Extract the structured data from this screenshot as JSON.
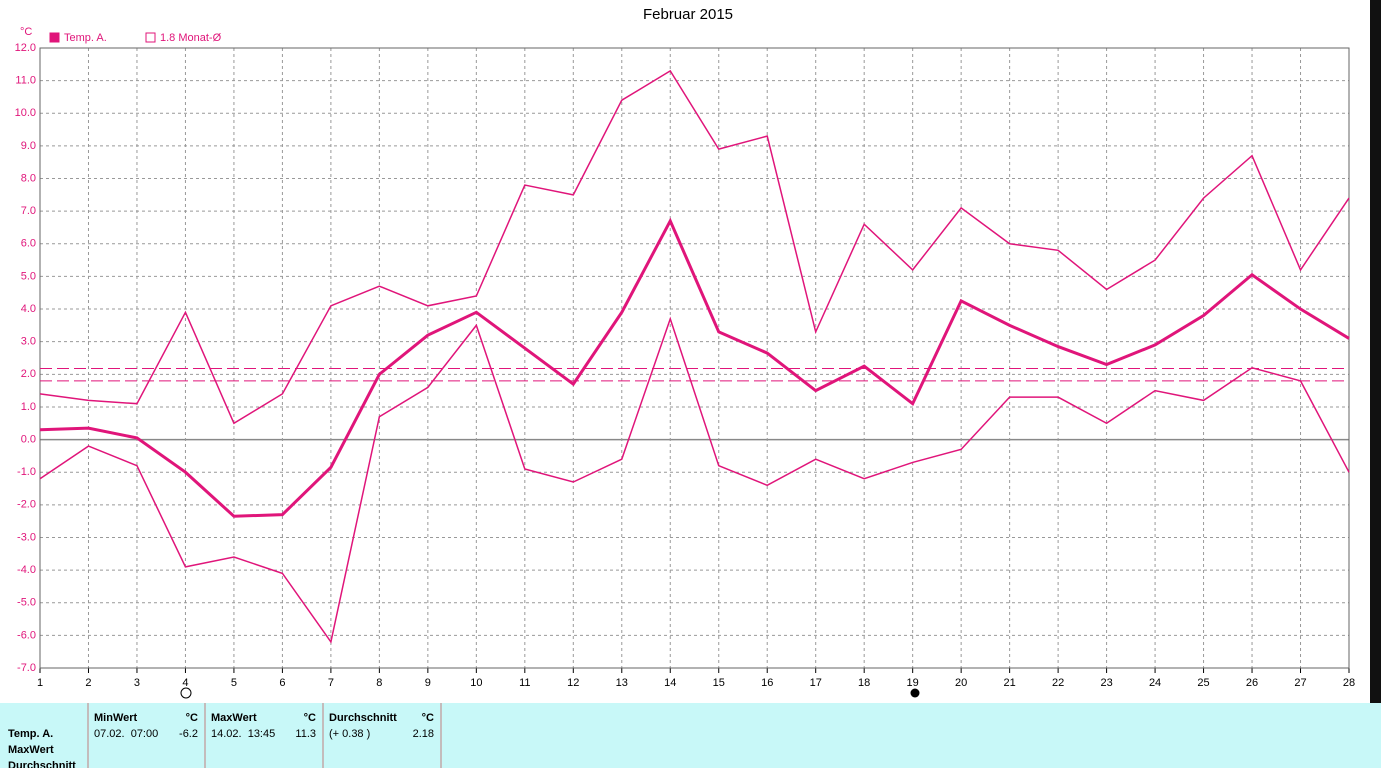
{
  "chart_data": {
    "type": "line",
    "title": "Februar 2015",
    "y_unit": "°C",
    "legend": [
      {
        "label": "Temp. A.",
        "filled": true
      },
      {
        "label": "1.8 Monat-Ø",
        "filled": false
      }
    ],
    "x": [
      1,
      2,
      3,
      4,
      5,
      6,
      7,
      8,
      9,
      10,
      11,
      12,
      13,
      14,
      15,
      16,
      17,
      18,
      19,
      20,
      21,
      22,
      23,
      24,
      25,
      26,
      27,
      28
    ],
    "xlim": [
      1,
      28
    ],
    "xticks": [
      1,
      2,
      3,
      4,
      5,
      6,
      7,
      8,
      9,
      10,
      11,
      12,
      13,
      14,
      15,
      16,
      17,
      18,
      19,
      20,
      21,
      22,
      23,
      24,
      25,
      26,
      27,
      28
    ],
    "ylim": [
      -7,
      12
    ],
    "yticks": [
      {
        "value": -7,
        "label": "-7.0"
      },
      {
        "value": -6,
        "label": "-6.0"
      },
      {
        "value": -5,
        "label": "-5.0"
      },
      {
        "value": -4,
        "label": "-4.0"
      },
      {
        "value": -3,
        "label": "-3.0"
      },
      {
        "value": -2,
        "label": "-2.0"
      },
      {
        "value": -1,
        "label": "-1.0"
      },
      {
        "value": 0,
        "label": "0.0"
      },
      {
        "value": 1,
        "label": "1.0"
      },
      {
        "value": 2,
        "label": "2.0"
      },
      {
        "value": 3,
        "label": "3.0"
      },
      {
        "value": 4,
        "label": "4.0"
      },
      {
        "value": 5,
        "label": "5.0"
      },
      {
        "value": 6,
        "label": "6.0"
      },
      {
        "value": 7,
        "label": "7.0"
      },
      {
        "value": 8,
        "label": "8.0"
      },
      {
        "value": 9,
        "label": "9.0"
      },
      {
        "value": 10,
        "label": "10.0"
      },
      {
        "value": 11,
        "label": "11.0"
      },
      {
        "value": 12,
        "label": "12.0"
      }
    ],
    "grid": true,
    "series": [
      {
        "color": "#e0157a",
        "width": 1.5,
        "values": [
          1.4,
          1.2,
          1.1,
          3.9,
          0.5,
          1.4,
          4.1,
          4.7,
          4.1,
          4.4,
          7.8,
          7.5,
          10.4,
          11.3,
          8.9,
          9.3,
          3.3,
          6.6,
          5.2,
          7.1,
          6.0,
          5.8,
          4.6,
          5.5,
          7.4,
          8.7,
          5.2,
          7.4
        ]
      },
      {
        "color": "#e0157a",
        "width": 3,
        "values": [
          0.3,
          0.35,
          0.05,
          -1.0,
          -2.35,
          -2.3,
          -0.85,
          2.0,
          3.2,
          3.9,
          2.8,
          1.7,
          3.9,
          6.7,
          3.3,
          2.65,
          1.5,
          2.25,
          1.1,
          4.25,
          3.5,
          2.85,
          2.3,
          2.9,
          3.8,
          5.05,
          4.0,
          3.1
        ]
      },
      {
        "color": "#e0157a",
        "width": 1.5,
        "values": [
          -1.2,
          -0.2,
          -0.8,
          -3.9,
          -3.6,
          -4.1,
          -6.2,
          0.7,
          1.6,
          3.5,
          -0.9,
          -1.3,
          -0.6,
          3.7,
          -0.8,
          -1.4,
          -0.6,
          -1.2,
          -0.7,
          -0.3,
          1.3,
          1.3,
          0.5,
          1.5,
          1.2,
          2.2,
          1.8,
          -1.0
        ]
      }
    ],
    "hlines": [
      {
        "value": 2.18,
        "color": "#e0157a"
      },
      {
        "value": 1.8,
        "color": "#e0157a"
      }
    ]
  },
  "table": {
    "row_labels": [
      "Temp. A.",
      "MaxWert",
      "Durchschnitt"
    ],
    "groups": [
      {
        "header": "MinWert",
        "unit": "°C",
        "when": "07.02.  07:00",
        "value": -6.2
      },
      {
        "header": "MaxWert",
        "unit": "°C",
        "when": "14.02.  13:45",
        "value": 11.3
      },
      {
        "header": "Durchschnitt",
        "unit": "°C",
        "when": "(+ 0.38 )",
        "value": 2.18
      }
    ]
  }
}
